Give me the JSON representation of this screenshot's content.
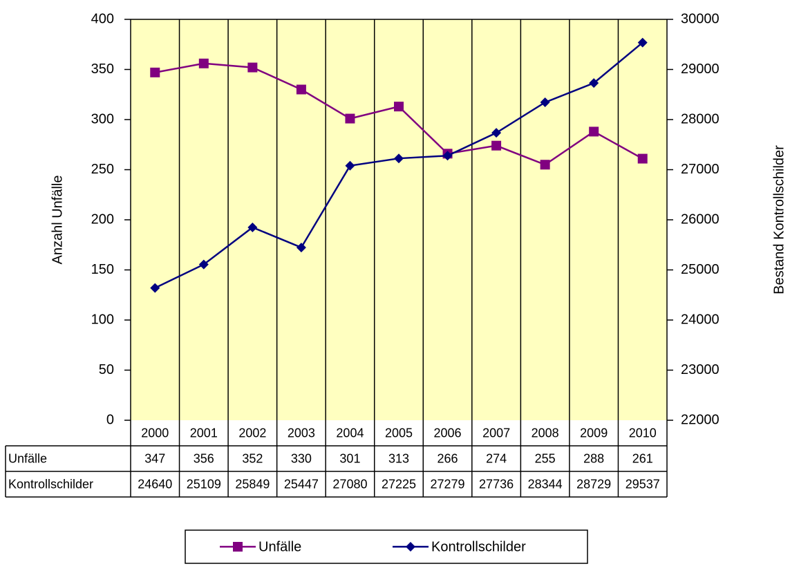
{
  "chart_data": {
    "type": "line",
    "categories": [
      "2000",
      "2001",
      "2002",
      "2003",
      "2004",
      "2005",
      "2006",
      "2007",
      "2008",
      "2009",
      "2010"
    ],
    "series": [
      {
        "name": "Unfälle",
        "color": "#800080",
        "marker": "square",
        "values": [
          347,
          356,
          352,
          330,
          301,
          313,
          266,
          274,
          255,
          288,
          261
        ]
      },
      {
        "name": "Kontrollschilder",
        "color": "#000080",
        "marker": "diamond",
        "axis": "y2",
        "values": [
          24640,
          25109,
          25849,
          25447,
          27080,
          27225,
          27279,
          27736,
          28344,
          28729,
          29537
        ]
      }
    ],
    "ylabel": "Anzahl Unfälle",
    "y2label": "Bestand Kontrollschilder",
    "ylim": [
      0,
      400
    ],
    "yticks": [
      0,
      50,
      100,
      150,
      200,
      250,
      300,
      350,
      400
    ],
    "y2lim": [
      22000,
      30000
    ],
    "y2ticks": [
      22000,
      23000,
      24000,
      25000,
      26000,
      27000,
      28000,
      29000,
      30000
    ],
    "background": "#ffffc0",
    "grid": "x",
    "legend": "bottom",
    "data_table": true
  }
}
